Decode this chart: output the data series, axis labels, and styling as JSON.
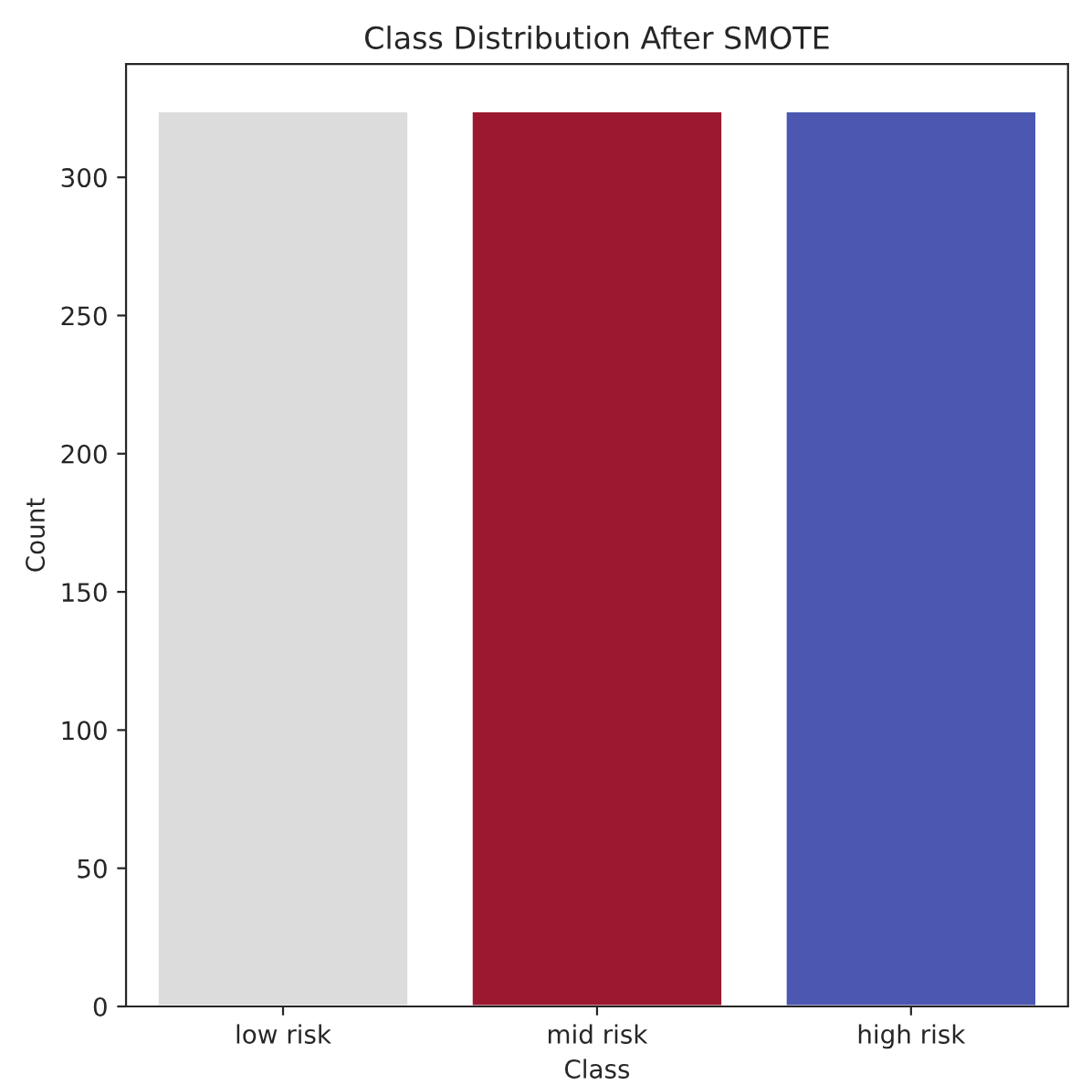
{
  "chart_data": {
    "type": "bar",
    "title": "Class Distribution After SMOTE",
    "xlabel": "Class",
    "ylabel": "Count",
    "categories": [
      "low risk",
      "mid risk",
      "high risk"
    ],
    "values": [
      324,
      324,
      324
    ],
    "colors": [
      "#dcdcdc",
      "#9b1830",
      "#4b57b0"
    ],
    "ylim": [
      0,
      341
    ],
    "yticks": [
      0,
      50,
      100,
      150,
      200,
      250,
      300
    ],
    "grid": false,
    "legend": false
  }
}
